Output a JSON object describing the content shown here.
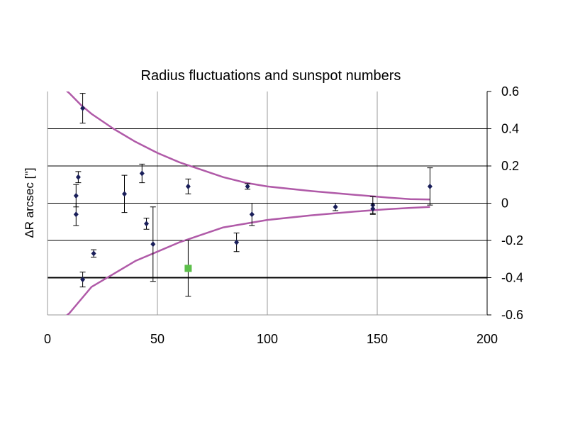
{
  "chart_data": {
    "type": "scatter",
    "title": "Radius fluctuations and sunspot numbers",
    "xlabel": "",
    "ylabel": "ΔR arcsec ['']",
    "xlim": [
      0,
      200
    ],
    "ylim": [
      -0.6,
      0.6
    ],
    "x_ticks": [
      0,
      50,
      100,
      150,
      200
    ],
    "x_tick_labels": [
      "0",
      "50",
      "100",
      "150",
      "200"
    ],
    "y_ticks": [
      0.6,
      0.4,
      0.2,
      0,
      -0.2,
      -0.4,
      -0.6
    ],
    "y_tick_labels": [
      "0.6",
      "0.4",
      "0.2",
      "0",
      "-0.2",
      "-0.4",
      "-0.6"
    ],
    "y_axis_side": "right",
    "grid": true,
    "legend": "none",
    "series": [
      {
        "marker": "diamond",
        "color": "#1a1f5a",
        "points": [
          {
            "x": 13,
            "y": -0.06,
            "err": 0.06
          },
          {
            "x": 13,
            "y": 0.04,
            "err": 0.06
          },
          {
            "x": 14,
            "y": 0.14,
            "err": 0.03
          },
          {
            "x": 16,
            "y": 0.51,
            "err": 0.08
          },
          {
            "x": 16,
            "y": -0.41,
            "err": 0.04
          },
          {
            "x": 21,
            "y": -0.27,
            "err": 0.02
          },
          {
            "x": 35,
            "y": 0.05,
            "err": 0.1
          },
          {
            "x": 43,
            "y": 0.16,
            "err": 0.05
          },
          {
            "x": 45,
            "y": -0.11,
            "err": 0.03
          },
          {
            "x": 48,
            "y": -0.22,
            "err": 0.2
          },
          {
            "x": 64,
            "y": 0.09,
            "err": 0.04
          },
          {
            "x": 86,
            "y": -0.21,
            "err": 0.05
          },
          {
            "x": 91,
            "y": 0.09,
            "err": 0.015
          },
          {
            "x": 93,
            "y": -0.06,
            "err": 0.06
          },
          {
            "x": 131,
            "y": -0.02,
            "err": 0.02
          },
          {
            "x": 148,
            "y": -0.01,
            "err": 0.045
          },
          {
            "x": 148,
            "y": -0.03,
            "err": 0.03
          },
          {
            "x": 174,
            "y": 0.09,
            "err": 0.1
          }
        ]
      },
      {
        "marker": "square",
        "color": "#5cbf4a",
        "points": [
          {
            "x": 64,
            "y": -0.35,
            "err": 0.15
          }
        ]
      }
    ],
    "envelope_curves": {
      "color": "#b05aa8",
      "upper": [
        [
          7,
          0.62
        ],
        [
          10,
          0.59
        ],
        [
          15,
          0.53
        ],
        [
          20,
          0.48
        ],
        [
          30,
          0.4
        ],
        [
          40,
          0.33
        ],
        [
          50,
          0.27
        ],
        [
          60,
          0.22
        ],
        [
          70,
          0.18
        ],
        [
          80,
          0.14
        ],
        [
          90,
          0.11
        ],
        [
          100,
          0.09
        ],
        [
          120,
          0.065
        ],
        [
          140,
          0.045
        ],
        [
          155,
          0.03
        ],
        [
          165,
          0.022
        ],
        [
          174,
          0.02
        ]
      ],
      "lower": [
        [
          7,
          -0.62
        ],
        [
          10,
          -0.59
        ],
        [
          15,
          -0.52
        ],
        [
          20,
          -0.45
        ],
        [
          30,
          -0.38
        ],
        [
          40,
          -0.31
        ],
        [
          50,
          -0.26
        ],
        [
          60,
          -0.21
        ],
        [
          70,
          -0.17
        ],
        [
          80,
          -0.13
        ],
        [
          90,
          -0.11
        ],
        [
          100,
          -0.09
        ],
        [
          120,
          -0.065
        ],
        [
          140,
          -0.045
        ],
        [
          155,
          -0.032
        ],
        [
          165,
          -0.025
        ],
        [
          174,
          -0.02
        ]
      ]
    }
  }
}
